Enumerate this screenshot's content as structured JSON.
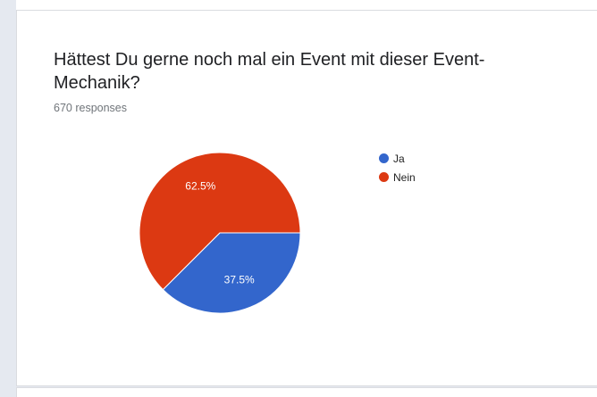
{
  "question": {
    "title": "Hättest Du gerne noch mal ein Event mit dieser Event-Mechanik?",
    "responses": "670 responses"
  },
  "chart_data": {
    "type": "pie",
    "categories": [
      "Ja",
      "Nein"
    ],
    "values": [
      37.5,
      62.5
    ],
    "labels": [
      "37.5%",
      "62.5%"
    ],
    "colors": [
      "#3366cc",
      "#dc3912"
    ],
    "legend_position": "right"
  }
}
